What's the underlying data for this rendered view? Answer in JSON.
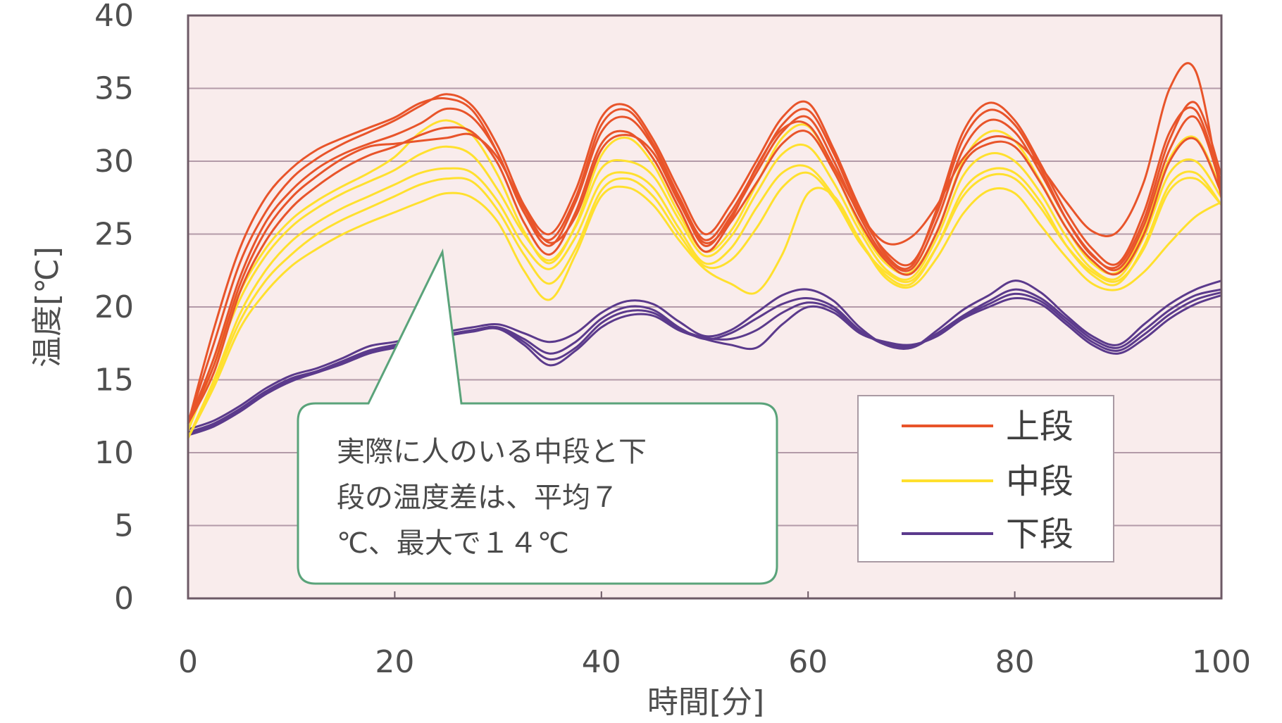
{
  "chart_data": {
    "type": "line",
    "title": "",
    "xlabel": "時間[分]",
    "ylabel": "温度[℃]",
    "xlim": [
      0,
      100
    ],
    "ylim": [
      0,
      40
    ],
    "xticks": [
      "0",
      "20",
      "40",
      "60",
      "80",
      "100"
    ],
    "yticks": [
      "0",
      "5",
      "10",
      "15",
      "20",
      "25",
      "30",
      "35",
      "40"
    ],
    "grid": "horizontal",
    "legend_position": "bottom-right",
    "colors": {
      "plot_bg": "#f9ecec",
      "grid": "#b39aa8",
      "frame": "#6d5a66",
      "upper": "#e8542a",
      "middle": "#ffe02e",
      "lower": "#5b3a8c",
      "callout_border": "#5aa37a"
    },
    "legend": [
      {
        "label": "上段",
        "key": "upper"
      },
      {
        "label": "中段",
        "key": "middle"
      },
      {
        "label": "下段",
        "key": "lower"
      }
    ],
    "annotation": {
      "lines": [
        "実際に人のいる中段と下",
        "段の温度差は、平均７",
        "℃、最大で１４℃"
      ],
      "points_to": [
        25,
        24.5
      ]
    },
    "x": [
      0,
      2.5,
      5,
      7.5,
      10,
      12.5,
      15,
      17.5,
      20,
      22.5,
      25,
      27.5,
      30,
      32.5,
      35,
      37.5,
      40,
      42.5,
      45,
      47.5,
      50,
      52.5,
      55,
      57.5,
      60,
      62.5,
      65,
      67.5,
      70,
      72.5,
      75,
      77.5,
      80,
      82.5,
      85,
      87.5,
      90,
      92.5,
      95,
      97.5,
      100
    ],
    "series": [
      {
        "group": "upper",
        "values": [
          12,
          18.5,
          24,
          27.5,
          29.5,
          30.8,
          31.6,
          32.3,
          33,
          34,
          34.3,
          33.5,
          30.5,
          26.5,
          24.6,
          27.5,
          32.5,
          33.5,
          31.2,
          27.6,
          24.6,
          26.5,
          29.5,
          32.5,
          33.5,
          30.5,
          26.5,
          23.8,
          23,
          26.5,
          31.5,
          33.5,
          32.5,
          29.5,
          26,
          23.5,
          22.8,
          26,
          31.5,
          34,
          29
        ]
      },
      {
        "group": "upper",
        "values": [
          12,
          17.5,
          23,
          26.5,
          28.8,
          30.2,
          31.2,
          32,
          32.8,
          33.8,
          34.6,
          33.8,
          31,
          27,
          25,
          28,
          33,
          33.8,
          31.5,
          28,
          25,
          27,
          30,
          33,
          34,
          30.8,
          26.8,
          23.6,
          22.8,
          26.8,
          32,
          34,
          32.8,
          29.8,
          26.5,
          24,
          23,
          26.5,
          32,
          33.5,
          28.5
        ]
      },
      {
        "group": "upper",
        "values": [
          12,
          16.5,
          22,
          25.8,
          28,
          29.5,
          30.5,
          31.2,
          31.8,
          32.6,
          33.6,
          33,
          30.5,
          26.5,
          24.2,
          27.2,
          32,
          33,
          31,
          27.4,
          24.2,
          26.2,
          29.2,
          32,
          33,
          30,
          26.2,
          23.4,
          22.6,
          26,
          30.8,
          32.8,
          32,
          29.2,
          26,
          23.6,
          22.6,
          25.6,
          30.8,
          33,
          28.2
        ]
      },
      {
        "group": "upper",
        "values": [
          12,
          15.5,
          21,
          24.5,
          26.8,
          28.3,
          29.5,
          30.4,
          31,
          31.8,
          32.3,
          32,
          29.8,
          25.8,
          23.6,
          26.5,
          31.2,
          32,
          30.2,
          26.8,
          23.8,
          25.8,
          28.5,
          31.2,
          32,
          29.3,
          25.8,
          23.2,
          22.3,
          25.2,
          29.8,
          31.2,
          31,
          28.5,
          25.4,
          23.2,
          22.3,
          25,
          30,
          31.5,
          27.8
        ]
      },
      {
        "group": "upper",
        "values": [
          12,
          16,
          21.5,
          25.2,
          27.5,
          29,
          30.2,
          31,
          31.2,
          31.4,
          31.6,
          31.8,
          30.2,
          26.8,
          24.4,
          26.2,
          30.8,
          31.8,
          30.6,
          27.2,
          24.4,
          26,
          29.6,
          32.2,
          32.5,
          29.6,
          26.4,
          24.4,
          24.8,
          27,
          30.2,
          31.6,
          31.4,
          29.6,
          27.2,
          25.2,
          25.2,
          28.6,
          35,
          36.2,
          27.5
        ]
      },
      {
        "group": "middle",
        "values": [
          11.5,
          16,
          20.5,
          23.5,
          25.5,
          26.8,
          27.8,
          28.6,
          29.4,
          30.5,
          31,
          30.4,
          28,
          25,
          23.2,
          25.5,
          29.5,
          30,
          29,
          26,
          23.5,
          24.8,
          27.8,
          30.5,
          31,
          28.5,
          25.2,
          22.6,
          22,
          24.8,
          29,
          30.5,
          30,
          27.8,
          24.8,
          22.6,
          22,
          24.8,
          29.2,
          30,
          27.5
        ]
      },
      {
        "group": "middle",
        "values": [
          11,
          15,
          19.5,
          22.5,
          24.5,
          25.8,
          26.8,
          27.6,
          28.4,
          29.2,
          29.5,
          29.2,
          27.2,
          24.2,
          22.6,
          24.8,
          28.6,
          29.2,
          28.2,
          25.4,
          23,
          24,
          26.8,
          29.2,
          29.6,
          27.6,
          24.6,
          22.2,
          21.6,
          24.2,
          28,
          29.4,
          29.2,
          27.2,
          24.2,
          22.2,
          21.6,
          24.2,
          28.4,
          29.2,
          27
        ]
      },
      {
        "group": "middle",
        "values": [
          11,
          14.5,
          18.5,
          21,
          22.8,
          24,
          25,
          25.8,
          26.5,
          27.2,
          27.8,
          27.5,
          25.8,
          22.5,
          20.5,
          23.6,
          27.6,
          28.2,
          27,
          24.6,
          22.6,
          21.6,
          21,
          23.6,
          27.8,
          27.6,
          24.6,
          22,
          21.4,
          23.4,
          26.4,
          28,
          27.8,
          25.6,
          23.4,
          21.6,
          21.2,
          22.4,
          24.4,
          26.2,
          27.2
        ]
      },
      {
        "group": "middle",
        "values": [
          11.5,
          16.5,
          21,
          24,
          26,
          27.3,
          28.3,
          29.2,
          30.3,
          32,
          32.8,
          31.8,
          29,
          25.2,
          23,
          25.6,
          30.4,
          31.6,
          29.8,
          26.4,
          23.8,
          25.2,
          28.4,
          31.6,
          32.4,
          29.4,
          25.6,
          23,
          22.4,
          25.2,
          30,
          32,
          31.4,
          28.6,
          25.4,
          23,
          22.4,
          25.2,
          30.2,
          31.6,
          28
        ]
      },
      {
        "group": "middle",
        "values": [
          11,
          14.8,
          19,
          21.8,
          23.6,
          25,
          26,
          26.8,
          27.6,
          28.4,
          28.8,
          28.6,
          26.6,
          23.6,
          21.6,
          24,
          28,
          28.8,
          27.6,
          25,
          22.8,
          23.2,
          25.4,
          28.2,
          29.2,
          27.4,
          24.4,
          22.4,
          21.8,
          24.2,
          27.6,
          29,
          28.8,
          26.8,
          24.2,
          22.4,
          21.8,
          24,
          28,
          28.8,
          27
        ]
      },
      {
        "group": "lower",
        "values": [
          11.6,
          12.2,
          13.2,
          14.4,
          15.3,
          15.8,
          16.5,
          17.3,
          17.6,
          18,
          18.3,
          18.6,
          18.8,
          18.2,
          17.6,
          18.2,
          19.6,
          20.4,
          20.2,
          19,
          18,
          18.4,
          19.6,
          20.8,
          21.2,
          20.4,
          18.6,
          17.4,
          17.2,
          18.4,
          19.8,
          20.8,
          21.8,
          21,
          19.4,
          18,
          17.4,
          18.8,
          20.2,
          21.2,
          21.8
        ]
      },
      {
        "group": "lower",
        "values": [
          11.4,
          12,
          13,
          14.2,
          15.1,
          15.6,
          16.3,
          17,
          17.4,
          17.8,
          18.1,
          18.4,
          18.6,
          17.8,
          16.8,
          17.6,
          19.2,
          20,
          19.8,
          18.6,
          17.8,
          18.2,
          19.2,
          20.2,
          20.6,
          20,
          18.4,
          17.4,
          17.2,
          18.2,
          19.4,
          20.4,
          21.2,
          20.6,
          19.2,
          17.8,
          17.2,
          18.4,
          19.8,
          20.8,
          21.2
        ]
      },
      {
        "group": "lower",
        "values": [
          11.2,
          11.8,
          12.8,
          14,
          14.9,
          15.5,
          16.1,
          16.8,
          17.2,
          17.6,
          18,
          18.3,
          18.5,
          17.4,
          16,
          17,
          18.6,
          19.4,
          19.4,
          18.4,
          17.8,
          17.4,
          17.2,
          18.8,
          20,
          19.6,
          18.2,
          17.6,
          17.4,
          18,
          19.2,
          20,
          20.6,
          20.2,
          18.8,
          17.4,
          16.8,
          17.8,
          19.2,
          20.2,
          20.8
        ]
      },
      {
        "group": "lower",
        "values": [
          11.3,
          11.9,
          12.9,
          14.1,
          15,
          15.5,
          16.2,
          16.9,
          17.3,
          17.7,
          18.1,
          18.4,
          18.6,
          17.6,
          16.4,
          17.2,
          18.9,
          19.7,
          19.6,
          18.5,
          17.9,
          17.8,
          18.4,
          19.6,
          20.3,
          19.8,
          18.3,
          17.5,
          17.3,
          18.1,
          19.3,
          20.2,
          20.9,
          20.4,
          19,
          17.6,
          17,
          18.1,
          19.5,
          20.5,
          21
        ]
      }
    ]
  }
}
